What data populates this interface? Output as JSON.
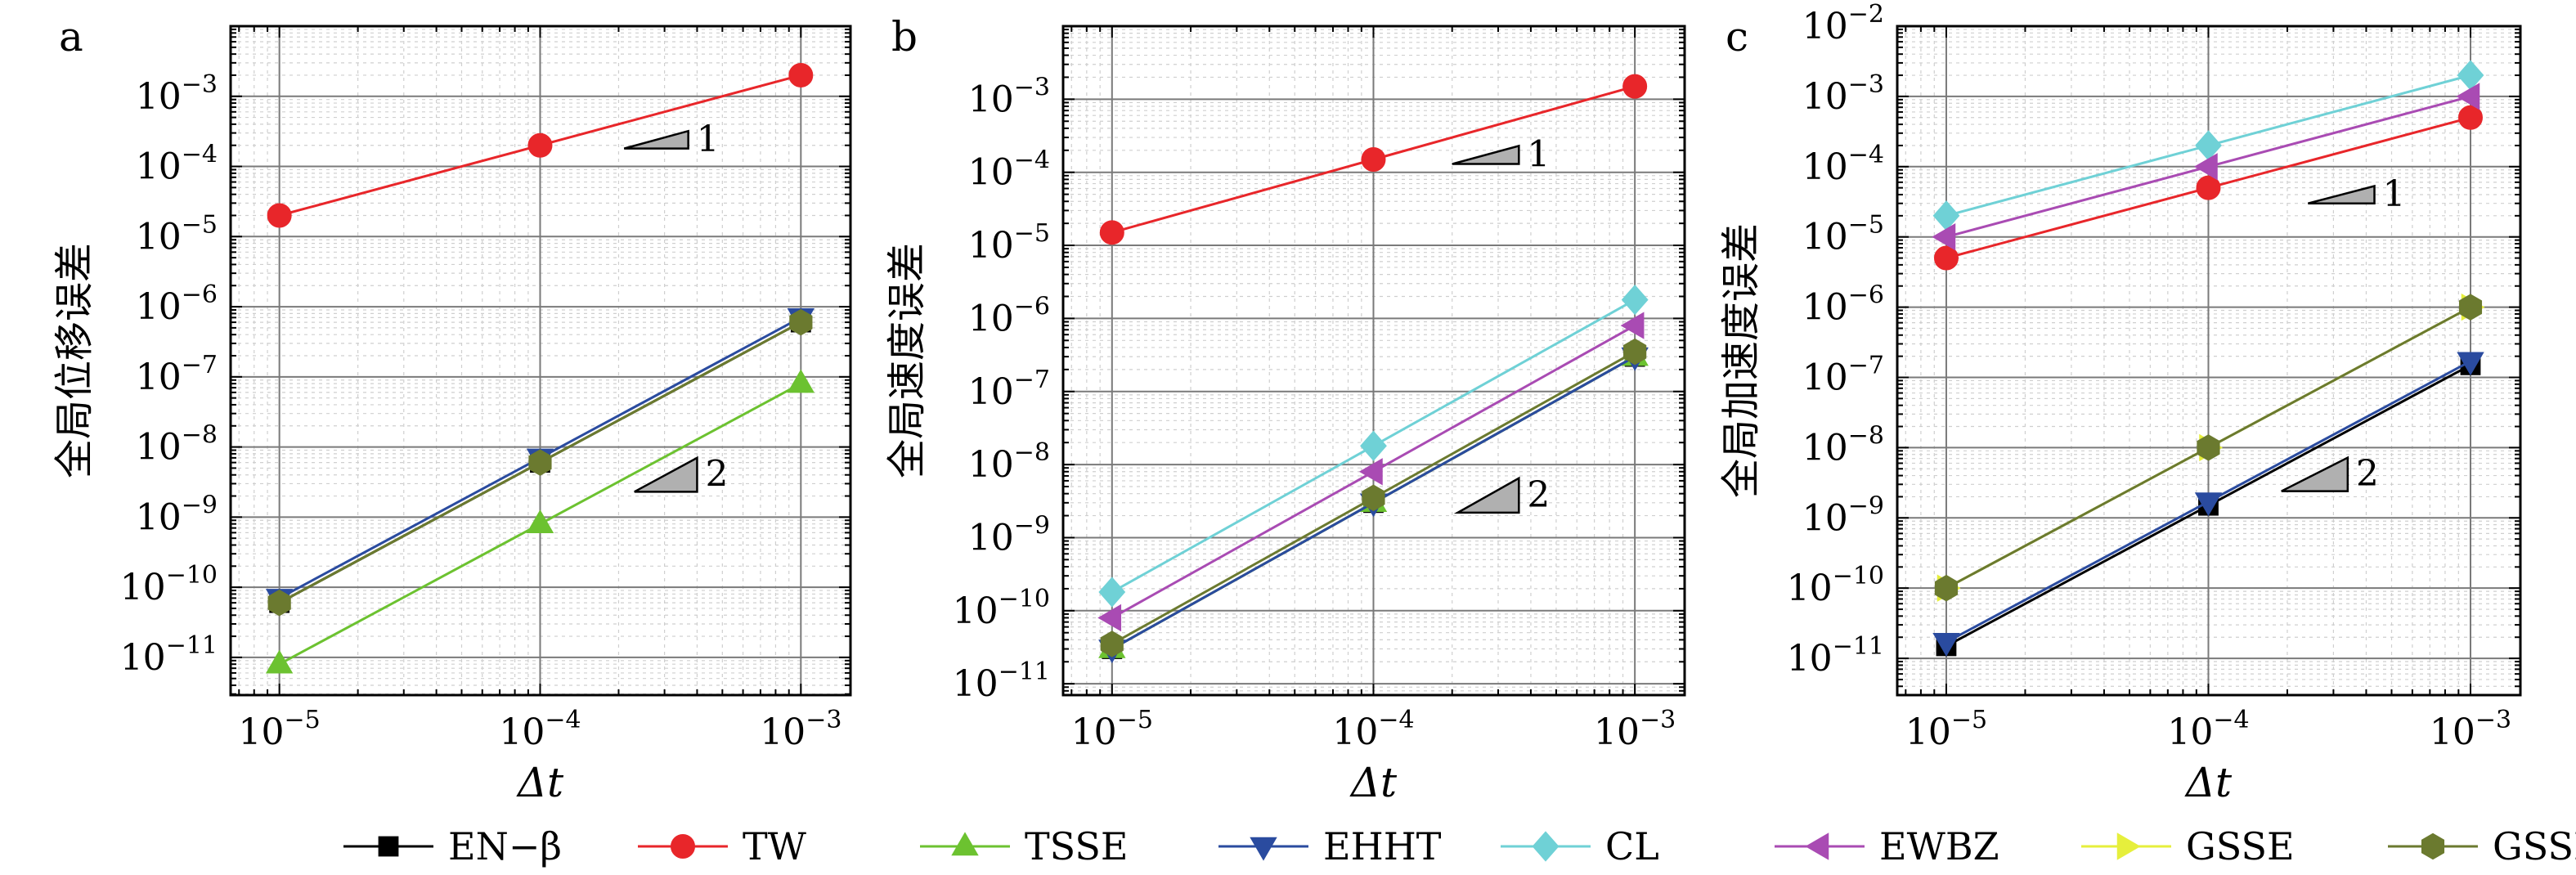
{
  "legend": [
    {
      "name": "EN−β",
      "color": "#000000",
      "marker": "square"
    },
    {
      "name": "TW",
      "color": "#e8262a",
      "marker": "circle"
    },
    {
      "name": "TSSE",
      "color": "#6cc230",
      "marker": "triangle-up"
    },
    {
      "name": "EHHT",
      "color": "#2a4b9f",
      "marker": "triangle-down"
    },
    {
      "name": "CL",
      "color": "#6fd1d6",
      "marker": "diamond"
    },
    {
      "name": "EWBZ",
      "color": "#a94bb3",
      "marker": "triangle-left"
    },
    {
      "name": "GSSE",
      "color": "#e6ef3c",
      "marker": "triangle-right"
    },
    {
      "name": "GSSI",
      "color": "#6b7a2f",
      "marker": "hexagon"
    }
  ],
  "chart_data": [
    {
      "type": "line",
      "panel_label": "a",
      "xlabel": "Δt",
      "ylabel": "全局位移误差",
      "xscale": "log",
      "yscale": "log",
      "xlim": [
        6.5e-06,
        0.00155
      ],
      "ylim": [
        2.9e-12,
        0.01
      ],
      "x_ticks": [
        "10^-5",
        "10^-4",
        "10^-3"
      ],
      "y_ticks": [
        "10^-11",
        "10^-10",
        "10^-9",
        "10^-8",
        "10^-7",
        "10^-6",
        "10^-5",
        "10^-4",
        "10^-3"
      ],
      "grid": true,
      "x": [
        1e-05,
        0.0001,
        0.001
      ],
      "series": [
        {
          "name": "EN−β",
          "values": [
            6e-11,
            6e-09,
            6e-07
          ]
        },
        {
          "name": "TW",
          "values": [
            2e-05,
            0.0002,
            0.002
          ]
        },
        {
          "name": "TSSE",
          "values": [
            8e-12,
            8e-10,
            8e-08
          ]
        },
        {
          "name": "EHHT",
          "values": [
            7e-11,
            7e-09,
            7e-07
          ]
        },
        {
          "name": "GSSI",
          "values": [
            6e-11,
            6e-09,
            6e-07
          ]
        }
      ],
      "slope_triangles": [
        {
          "label": "1",
          "x": [
            0.00021,
            0.00037
          ],
          "y": [
            0.00018,
            0.00032
          ]
        },
        {
          "label": "2",
          "x": [
            0.00023,
            0.0004
          ],
          "y": [
            2.3e-09,
            7e-09
          ]
        }
      ]
    },
    {
      "type": "line",
      "panel_label": "b",
      "xlabel": "Δt",
      "ylabel": "全局速度误差",
      "xscale": "log",
      "yscale": "log",
      "xlim": [
        6.5e-06,
        0.00155
      ],
      "ylim": [
        7e-12,
        0.01
      ],
      "x_ticks": [
        "10^-5",
        "10^-4",
        "10^-3"
      ],
      "y_ticks": [
        "10^-11",
        "10^-10",
        "10^-9",
        "10^-8",
        "10^-7",
        "10^-6",
        "10^-5",
        "10^-4",
        "10^-3"
      ],
      "grid": true,
      "x": [
        1e-05,
        0.0001,
        0.001
      ],
      "series": [
        {
          "name": "EN−β",
          "values": [
            3e-11,
            3e-09,
            3e-07
          ]
        },
        {
          "name": "TW",
          "values": [
            1.5e-05,
            0.00015,
            0.0015
          ]
        },
        {
          "name": "TSSE",
          "values": [
            3e-11,
            3e-09,
            3e-07
          ]
        },
        {
          "name": "EHHT",
          "values": [
            3e-11,
            3e-09,
            3e-07
          ]
        },
        {
          "name": "CL",
          "values": [
            1.8e-10,
            1.8e-08,
            1.8e-06
          ]
        },
        {
          "name": "EWBZ",
          "values": [
            8e-11,
            8e-09,
            8e-07
          ]
        },
        {
          "name": "GSSI",
          "values": [
            3.5e-11,
            3.5e-09,
            3.5e-07
          ]
        }
      ],
      "slope_triangles": [
        {
          "label": "1",
          "x": [
            0.0002,
            0.00036
          ],
          "y": [
            0.00013,
            0.00023
          ]
        },
        {
          "label": "2",
          "x": [
            0.00021,
            0.00036
          ],
          "y": [
            2.2e-09,
            6.5e-09
          ]
        }
      ]
    },
    {
      "type": "line",
      "panel_label": "c",
      "xlabel": "Δt",
      "ylabel": "全局加速度误差",
      "xscale": "log",
      "yscale": "log",
      "xlim": [
        6.5e-06,
        0.00155
      ],
      "ylim": [
        3e-12,
        0.01
      ],
      "x_ticks": [
        "10^-5",
        "10^-4",
        "10^-3"
      ],
      "y_ticks": [
        "10^-11",
        "10^-10",
        "10^-9",
        "10^-8",
        "10^-7",
        "10^-6",
        "10^-5",
        "10^-4",
        "10^-3",
        "10^-2"
      ],
      "grid": true,
      "x": [
        1e-05,
        0.0001,
        0.001
      ],
      "series": [
        {
          "name": "EN−β",
          "values": [
            1.5e-11,
            1.5e-09,
            1.5e-07
          ]
        },
        {
          "name": "TW",
          "values": [
            5e-06,
            5e-05,
            0.0005
          ]
        },
        {
          "name": "EHHT",
          "values": [
            1.7e-11,
            1.7e-09,
            1.7e-07
          ]
        },
        {
          "name": "CL",
          "values": [
            2e-05,
            0.0002,
            0.002
          ]
        },
        {
          "name": "EWBZ",
          "values": [
            1e-05,
            0.0001,
            0.001
          ]
        },
        {
          "name": "GSSE",
          "values": [
            1e-10,
            1e-08,
            1e-06
          ]
        },
        {
          "name": "GSSI",
          "values": [
            1e-10,
            1e-08,
            1e-06
          ]
        }
      ],
      "slope_triangles": [
        {
          "label": "1",
          "x": [
            0.00024,
            0.00043
          ],
          "y": [
            3e-05,
            5.3e-05
          ]
        },
        {
          "label": "2",
          "x": [
            0.00019,
            0.00034
          ],
          "y": [
            2.4e-09,
            7.2e-09
          ]
        }
      ]
    }
  ]
}
